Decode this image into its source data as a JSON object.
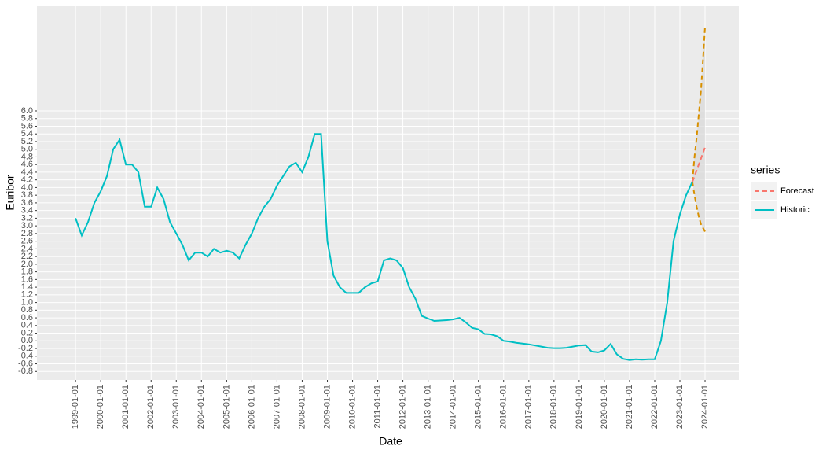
{
  "chart_data": {
    "type": "line",
    "x_label": "Date",
    "y_label": "Euribor",
    "legend_title": "series",
    "xlim": [
      "1997-06-20",
      "2025-05-05"
    ],
    "ylim": [
      -1.02,
      8.75
    ],
    "xticks": [
      "1999-01-01",
      "2000-01-01",
      "2001-01-01",
      "2002-01-01",
      "2003-01-01",
      "2004-01-01",
      "2005-01-01",
      "2006-01-01",
      "2007-01-01",
      "2008-01-01",
      "2009-01-01",
      "2010-01-01",
      "2011-01-01",
      "2012-01-01",
      "2013-01-01",
      "2014-01-01",
      "2015-01-01",
      "2016-01-01",
      "2017-01-01",
      "2018-01-01",
      "2019-01-01",
      "2020-01-01",
      "2021-01-01",
      "2022-01-01",
      "2023-01-01",
      "2024-01-01"
    ],
    "yticks": [
      -0.8,
      -0.6,
      -0.4,
      -0.2,
      {
        "value": 0,
        "label": "0.0"
      },
      0.2,
      0.4,
      0.6,
      0.8,
      {
        "value": 1,
        "label": "1.0"
      },
      1.2,
      1.4,
      1.6,
      1.8,
      {
        "value": 2,
        "label": "2.0"
      },
      2.2,
      2.4,
      2.6,
      2.8,
      {
        "value": 3,
        "label": "3.0"
      },
      3.2,
      3.4,
      3.6,
      3.8,
      {
        "value": 4,
        "label": "4.0"
      },
      4.2,
      4.4,
      4.6,
      4.8,
      {
        "value": 5,
        "label": "5.0"
      },
      5.2,
      5.4,
      5.6,
      5.8,
      {
        "value": 6,
        "label": "6.0"
      }
    ],
    "grid": true,
    "legend_position": "right",
    "series": [
      {
        "name": "Forecast",
        "color": "#F8766D",
        "dash": true,
        "x": [
          "2023-07-01",
          "2023-08-01",
          "2023-09-01",
          "2023-10-01",
          "2023-11-01",
          "2023-12-01",
          "2024-01-01"
        ],
        "values": [
          4.15,
          4.3,
          4.45,
          4.6,
          4.75,
          4.9,
          5.05
        ],
        "interval": {
          "color": "#D89000",
          "fill": "#D9D9D9",
          "upper": [
            4.15,
            4.8,
            5.3,
            5.9,
            6.5,
            7.3,
            8.2
          ],
          "lower": [
            4.15,
            3.8,
            3.5,
            3.25,
            3.05,
            2.95,
            2.85
          ]
        }
      },
      {
        "name": "Historic",
        "color": "#00BFC4",
        "dash": false,
        "x": [
          "1999-01-01",
          "1999-04-01",
          "1999-07-01",
          "1999-10-01",
          "2000-01-01",
          "2000-04-01",
          "2000-07-01",
          "2000-10-01",
          "2001-01-01",
          "2001-04-01",
          "2001-07-01",
          "2001-10-01",
          "2002-01-01",
          "2002-04-01",
          "2002-07-01",
          "2002-10-01",
          "2003-01-01",
          "2003-04-01",
          "2003-07-01",
          "2003-10-01",
          "2004-01-01",
          "2004-04-01",
          "2004-07-01",
          "2004-10-01",
          "2005-01-01",
          "2005-04-01",
          "2005-07-01",
          "2005-10-01",
          "2006-01-01",
          "2006-04-01",
          "2006-07-01",
          "2006-10-01",
          "2007-01-01",
          "2007-04-01",
          "2007-07-01",
          "2007-10-01",
          "2008-01-01",
          "2008-04-01",
          "2008-07-01",
          "2008-10-01",
          "2009-01-01",
          "2009-04-01",
          "2009-07-01",
          "2009-10-01",
          "2010-01-01",
          "2010-04-01",
          "2010-07-01",
          "2010-10-01",
          "2011-01-01",
          "2011-04-01",
          "2011-07-01",
          "2011-10-01",
          "2012-01-01",
          "2012-04-01",
          "2012-07-01",
          "2012-10-01",
          "2013-01-01",
          "2013-04-01",
          "2013-07-01",
          "2013-10-01",
          "2014-01-01",
          "2014-04-01",
          "2014-07-01",
          "2014-10-01",
          "2015-01-01",
          "2015-04-01",
          "2015-07-01",
          "2015-10-01",
          "2016-01-01",
          "2016-04-01",
          "2016-07-01",
          "2016-10-01",
          "2017-01-01",
          "2017-04-01",
          "2017-07-01",
          "2017-10-01",
          "2018-01-01",
          "2018-04-01",
          "2018-07-01",
          "2018-10-01",
          "2019-01-01",
          "2019-04-01",
          "2019-07-01",
          "2019-10-01",
          "2020-01-01",
          "2020-04-01",
          "2020-07-01",
          "2020-10-01",
          "2021-01-01",
          "2021-04-01",
          "2021-07-01",
          "2021-10-01",
          "2022-01-01",
          "2022-04-01",
          "2022-07-01",
          "2022-10-01",
          "2023-01-01",
          "2023-04-01",
          "2023-07-01"
        ],
        "values": [
          3.2,
          2.75,
          3.1,
          3.6,
          3.9,
          4.3,
          5.0,
          5.25,
          4.6,
          4.6,
          4.4,
          3.5,
          3.5,
          4.0,
          3.7,
          3.1,
          2.8,
          2.5,
          2.1,
          2.3,
          2.3,
          2.2,
          2.4,
          2.3,
          2.35,
          2.3,
          2.15,
          2.5,
          2.8,
          3.2,
          3.5,
          3.7,
          4.05,
          4.3,
          4.55,
          4.65,
          4.4,
          4.8,
          5.4,
          5.4,
          2.6,
          1.7,
          1.4,
          1.25,
          1.25,
          1.25,
          1.4,
          1.5,
          1.55,
          2.1,
          2.15,
          2.1,
          1.9,
          1.4,
          1.1,
          0.65,
          0.58,
          0.52,
          0.53,
          0.54,
          0.56,
          0.6,
          0.48,
          0.34,
          0.3,
          0.18,
          0.17,
          0.12,
          0.0,
          -0.02,
          -0.05,
          -0.07,
          -0.09,
          -0.12,
          -0.15,
          -0.18,
          -0.19,
          -0.19,
          -0.18,
          -0.15,
          -0.12,
          -0.11,
          -0.28,
          -0.3,
          -0.25,
          -0.08,
          -0.35,
          -0.47,
          -0.5,
          -0.48,
          -0.49,
          -0.48,
          -0.48,
          0.0,
          1.0,
          2.6,
          3.3,
          3.8,
          4.15
        ]
      }
    ]
  }
}
